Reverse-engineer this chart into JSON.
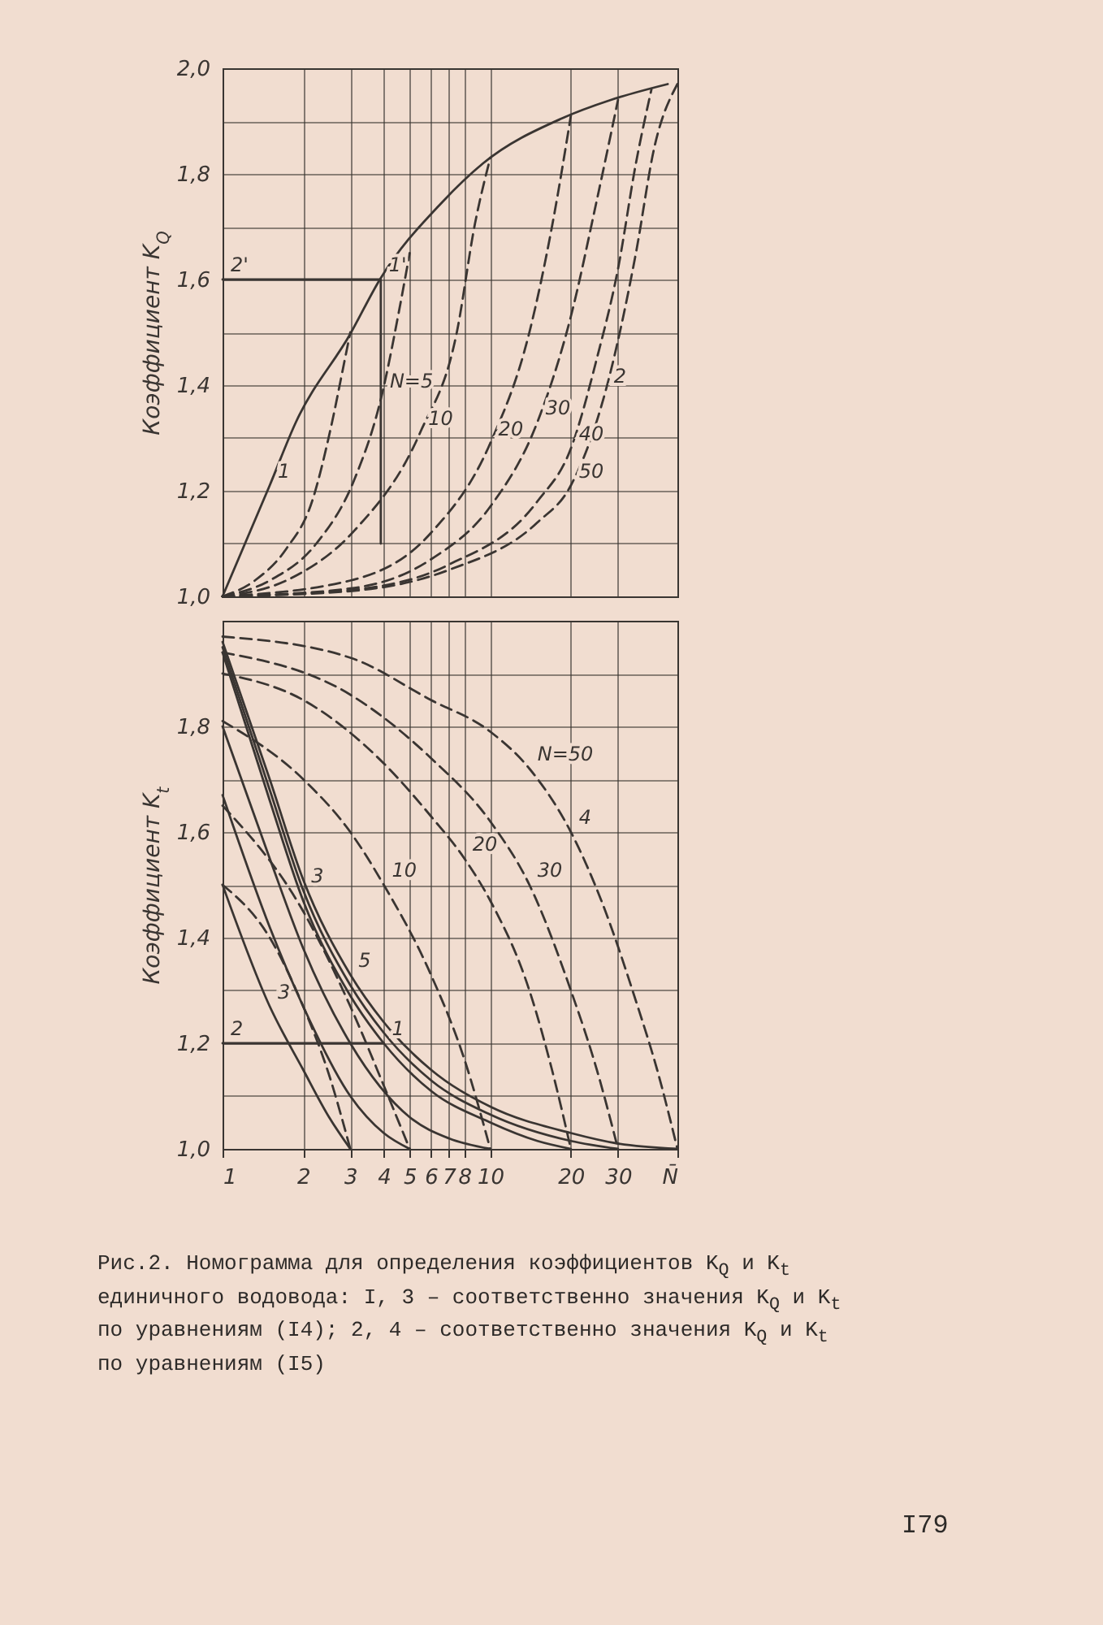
{
  "chart_data": [
    {
      "type": "line",
      "ylabel": "Коэффициент K$_{Q}$",
      "log": "x",
      "grid": true,
      "tick_labels": "y",
      "marker": "none",
      "xlim": [
        1,
        50
      ],
      "xticks": [
        1,
        2,
        3,
        4,
        5,
        6,
        7,
        8,
        10,
        20,
        30
      ],
      "ylim": [
        1.0,
        2.0
      ],
      "yticks": [
        {
          "value": 1.0,
          "label": "1,0"
        },
        {
          "value": 1.1,
          "label": null
        },
        {
          "value": 1.2,
          "label": "1,2"
        },
        {
          "value": 1.3,
          "label": null
        },
        {
          "value": 1.4,
          "label": "1,4"
        },
        {
          "value": 1.5,
          "label": null
        },
        {
          "value": 1.6,
          "label": "1,6"
        },
        {
          "value": 1.7,
          "label": null
        },
        {
          "value": 1.8,
          "label": "1,8"
        },
        {
          "value": 1.9,
          "label": null
        },
        {
          "value": 2.0,
          "label": "2,0"
        }
      ],
      "series": [
        {
          "color": "#3a3532",
          "line_style": "solid",
          "x": [
            1,
            1.5,
            1.88,
            3,
            3.87,
            6.63,
            9.4,
            18.5,
            28.2,
            46
          ],
          "values": [
            1.0,
            1.21,
            1.33,
            1.497,
            1.6,
            1.747,
            1.82,
            1.905,
            1.94,
            1.97
          ]
        },
        {
          "color": "#3a3532",
          "line_style": "dashed",
          "x": [
            1,
            1.32,
            1.73,
            2.16,
            2.54,
            2.84,
            3
          ],
          "values": [
            1.0,
            1.03,
            1.09,
            1.18,
            1.32,
            1.44,
            1.5
          ]
        },
        {
          "color": "#3a3532",
          "line_style": "dashed",
          "x": [
            1,
            1.5,
            2.24,
            3.1,
            3.93,
            4.6,
            5
          ],
          "values": [
            1.0,
            1.03,
            1.1,
            1.22,
            1.38,
            1.55,
            1.65
          ]
        },
        {
          "color": "#3a3532",
          "line_style": "dashed",
          "x": [
            1,
            1.78,
            3.1,
            5.47,
            7.5,
            8.77,
            10
          ],
          "values": [
            1.0,
            1.033,
            1.124,
            1.31,
            1.5,
            1.706,
            1.83
          ]
        },
        {
          "color": "#3a3532",
          "line_style": "dashed",
          "x": [
            1,
            3,
            6,
            10,
            14,
            17,
            20
          ],
          "values": [
            1.0,
            1.03,
            1.12,
            1.29,
            1.5,
            1.7,
            1.91
          ]
        },
        {
          "color": "#3a3532",
          "line_style": "dashed",
          "x": [
            1,
            3,
            6,
            10,
            15,
            20,
            25,
            30
          ],
          "values": [
            1.0,
            1.015,
            1.07,
            1.17,
            1.33,
            1.53,
            1.75,
            1.94
          ]
        },
        {
          "color": "#3a3532",
          "line_style": "dashed",
          "x": [
            1,
            3,
            7,
            15,
            20,
            25,
            30,
            35,
            40
          ],
          "values": [
            1.0,
            1.012,
            1.06,
            1.18,
            1.28,
            1.45,
            1.62,
            1.82,
            1.96
          ]
        },
        {
          "color": "#3a3532",
          "line_style": "dashed",
          "x": [
            1,
            3,
            7,
            15,
            20,
            27,
            35,
            41,
            50
          ],
          "values": [
            1.0,
            1.01,
            1.05,
            1.14,
            1.21,
            1.39,
            1.65,
            1.85,
            1.97
          ]
        },
        {
          "color": "#3a3532",
          "line_style": "solid",
          "x": [
            1,
            3.9
          ],
          "values": [
            1.6,
            1.6
          ]
        },
        {
          "color": "#3a3532",
          "line_style": "solid",
          "x": [
            3.9,
            3.9
          ],
          "values": [
            1.6,
            1.1
          ]
        }
      ],
      "annotations": [
        {
          "text": "1",
          "x": 1.5,
          "y": 1.21
        },
        {
          "text": "2",
          "x": 27,
          "y": 1.39
        },
        {
          "text": "2'",
          "x": 1,
          "y": 1.6
        },
        {
          "text": "1'",
          "x": 3.9,
          "y": 1.6
        },
        {
          "text": "N=5",
          "x": 3.93,
          "y": 1.38
        },
        {
          "text": "10",
          "x": 5.47,
          "y": 1.31
        },
        {
          "text": "20",
          "x": 10,
          "y": 1.29
        },
        {
          "text": "30",
          "x": 15,
          "y": 1.33
        },
        {
          "text": "40",
          "x": 20,
          "y": 1.28
        },
        {
          "text": "50",
          "x": 20,
          "y": 1.21
        }
      ]
    },
    {
      "type": "line",
      "ylabel": "Коэффициент K$_{t}$",
      "log": "x",
      "grid": true,
      "marker": "none",
      "xlim": [
        1,
        50
      ],
      "xticks": [
        1,
        2,
        3,
        4,
        5,
        6,
        7,
        8,
        10,
        20,
        30,
        {
          "value": 50,
          "label": "N̄"
        }
      ],
      "ylim": [
        1.0,
        2.0
      ],
      "yticks": [
        {
          "value": 1.0,
          "label": "1,0"
        },
        {
          "value": 1.1,
          "label": null
        },
        {
          "value": 1.2,
          "label": "1,2"
        },
        {
          "value": 1.3,
          "label": null
        },
        {
          "value": 1.4,
          "label": "1,4"
        },
        {
          "value": 1.5,
          "label": null
        },
        {
          "value": 1.6,
          "label": "1,6"
        },
        {
          "value": 1.7,
          "label": null
        },
        {
          "value": 1.8,
          "label": "1,8"
        },
        {
          "value": 1.9,
          "label": null
        },
        {
          "value": 2.0,
          "label": null
        }
      ],
      "series": [
        {
          "color": "#3a3532",
          "line_style": "solid",
          "x": [
            1,
            1.5,
            2,
            2.5,
            3
          ],
          "values": [
            1.5,
            1.27,
            1.15,
            1.06,
            1.0
          ]
        },
        {
          "color": "#3a3532",
          "line_style": "solid",
          "x": [
            1,
            1.5,
            2,
            3,
            4,
            5
          ],
          "values": [
            1.67,
            1.42,
            1.27,
            1.1,
            1.03,
            1.0
          ]
        },
        {
          "color": "#3a3532",
          "line_style": "solid",
          "x": [
            1,
            1.5,
            2,
            3,
            5,
            7,
            10
          ],
          "values": [
            1.8,
            1.55,
            1.38,
            1.2,
            1.06,
            1.02,
            1.0
          ]
        },
        {
          "color": "#3a3532",
          "line_style": "solid",
          "x": [
            1,
            1.5,
            2,
            3,
            4,
            6,
            10,
            15,
            20
          ],
          "values": [
            1.94,
            1.66,
            1.47,
            1.29,
            1.2,
            1.11,
            1.05,
            1.015,
            1.0
          ]
        },
        {
          "color": "#3a3532",
          "line_style": "solid",
          "x": [
            1,
            1.5,
            2,
            3,
            4,
            6,
            10,
            20,
            30
          ],
          "values": [
            1.95,
            1.68,
            1.49,
            1.31,
            1.22,
            1.13,
            1.065,
            1.015,
            1.0
          ]
        },
        {
          "color": "#3a3532",
          "line_style": "solid",
          "x": [
            1,
            1.5,
            2,
            3,
            4,
            6,
            10,
            20,
            30,
            50
          ],
          "values": [
            1.96,
            1.7,
            1.51,
            1.33,
            1.24,
            1.15,
            1.08,
            1.03,
            1.01,
            1.0
          ]
        },
        {
          "color": "#3a3532",
          "line_style": "dashed",
          "x": [
            1,
            1.5,
            2,
            2.5,
            3
          ],
          "values": [
            1.5,
            1.4,
            1.27,
            1.14,
            1.0
          ]
        },
        {
          "color": "#3a3532",
          "line_style": "dashed",
          "x": [
            1,
            2,
            3,
            4,
            5
          ],
          "values": [
            1.65,
            1.45,
            1.27,
            1.12,
            1.0
          ]
        },
        {
          "color": "#3a3532",
          "line_style": "dashed",
          "x": [
            1,
            2,
            3,
            4,
            6,
            8,
            10
          ],
          "values": [
            1.81,
            1.7,
            1.6,
            1.5,
            1.33,
            1.17,
            1.0
          ]
        },
        {
          "color": "#3a3532",
          "line_style": "dashed",
          "x": [
            1,
            2,
            4,
            6,
            8,
            10,
            14,
            17,
            20
          ],
          "values": [
            1.9,
            1.85,
            1.73,
            1.63,
            1.55,
            1.47,
            1.3,
            1.15,
            1.0
          ]
        },
        {
          "color": "#3a3532",
          "line_style": "dashed",
          "x": [
            1,
            3,
            6,
            10,
            14,
            20,
            25,
            30
          ],
          "values": [
            1.94,
            1.86,
            1.74,
            1.62,
            1.5,
            1.3,
            1.15,
            1.0
          ]
        },
        {
          "color": "#3a3532",
          "line_style": "dashed",
          "x": [
            1,
            3,
            6,
            10,
            14,
            20,
            26,
            35,
            42,
            50
          ],
          "values": [
            1.97,
            1.93,
            1.85,
            1.79,
            1.72,
            1.6,
            1.47,
            1.28,
            1.15,
            1.0
          ]
        },
        {
          "color": "#3a3532",
          "line_style": "solid",
          "x": [
            1,
            4
          ],
          "values": [
            1.2,
            1.2
          ]
        }
      ],
      "annotations": [
        {
          "text": "3",
          "x": 2,
          "y": 1.49
        },
        {
          "text": "3",
          "x": 1.5,
          "y": 1.27
        },
        {
          "text": "4",
          "x": 20,
          "y": 1.6
        },
        {
          "text": "5",
          "x": 3,
          "y": 1.33
        },
        {
          "text": "10",
          "x": 4,
          "y": 1.5
        },
        {
          "text": "20",
          "x": 8,
          "y": 1.55
        },
        {
          "text": "30",
          "x": 14,
          "y": 1.5
        },
        {
          "text": "N=50",
          "x": 14,
          "y": 1.72
        },
        {
          "text": "1",
          "x": 4,
          "y": 1.2
        },
        {
          "text": "2",
          "x": 1,
          "y": 1.2
        },
        "Рис.2. Номограмма для определения коэффициентов K$_{Q}$ и K$_{t}$ единичного водовода: I, 3 – соответственно значения K$_{Q}$ и K$_{t}$ по уравнениям (I4); 2, 4 – соответственно значения K$_{Q}$ и K$_{t}$ по уравнениям (I5)",
        "I79"
      ]
    }
  ]
}
